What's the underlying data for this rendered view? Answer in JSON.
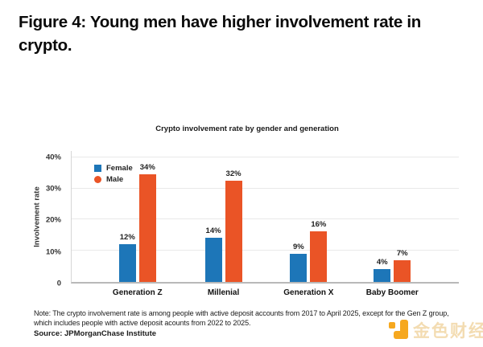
{
  "page": {
    "title_lines": [
      "Figure 4: Young men have higher involvement rate in",
      "crypto."
    ],
    "note_line1": "Note: The crypto involvement rate is among people with active deposit accounts from 2017 to April 2025, except for the Gen Z group,",
    "note_line2": "which includes people with active deposit acounts from 2022 to 2025.",
    "source": "Source: JPMorganChase Institute",
    "watermark_text": "金色财经"
  },
  "chart_data": {
    "type": "bar",
    "title": "Crypto involvement rate by gender and generation",
    "categories": [
      "Generation Z",
      "Millenial",
      "Generation X",
      "Baby Boomer"
    ],
    "series": [
      {
        "name": "Female",
        "marker": "square",
        "color": "#1d76b8",
        "values": [
          12,
          14,
          9,
          4
        ]
      },
      {
        "name": "Male",
        "marker": "circle",
        "color": "#ea5426",
        "values": [
          34,
          32,
          16,
          7
        ]
      }
    ],
    "data_label_format": "{v}%",
    "ylabel": "Involvement rate",
    "yticks": [
      {
        "value": 0,
        "label": "0"
      },
      {
        "value": 10,
        "label": "10%"
      },
      {
        "value": 20,
        "label": "20%"
      },
      {
        "value": 30,
        "label": "30%"
      },
      {
        "value": 40,
        "label": "40%"
      }
    ],
    "ylim": [
      0,
      42
    ],
    "grid": "horizontal",
    "legend_position": "top-left-inside"
  }
}
